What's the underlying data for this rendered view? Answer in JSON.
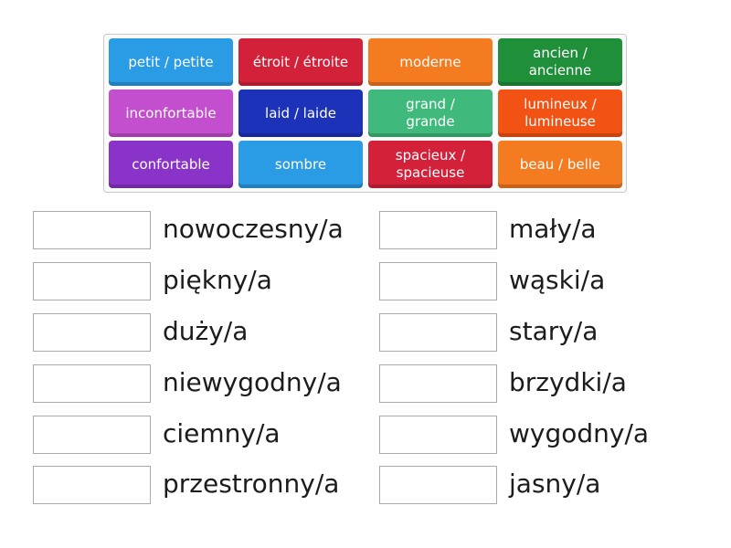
{
  "tiles": [
    {
      "label": "petit / petite",
      "color": "#2a9be5"
    },
    {
      "label": "étroit / étroite",
      "color": "#d4213a"
    },
    {
      "label": "moderne",
      "color": "#f47b20"
    },
    {
      "label": "ancien /\nancienne",
      "color": "#1f8f3a"
    },
    {
      "label": "inconfortable",
      "color": "#c34fcf"
    },
    {
      "label": "laid / laide",
      "color": "#1c32b8"
    },
    {
      "label": "grand /\ngrande",
      "color": "#3fba7c"
    },
    {
      "label": "lumineux /\nlumineuse",
      "color": "#f25314"
    },
    {
      "label": "confortable",
      "color": "#8a33c9"
    },
    {
      "label": "sombre",
      "color": "#2a9be5"
    },
    {
      "label": "spacieux /\nspacieuse",
      "color": "#d4213a"
    },
    {
      "label": "beau / belle",
      "color": "#f47b20"
    }
  ],
  "left_column": [
    {
      "label": "nowoczesny/a"
    },
    {
      "label": "piękny/a"
    },
    {
      "label": "duży/a"
    },
    {
      "label": "niewygodny/a"
    },
    {
      "label": "ciemny/a"
    },
    {
      "label": "przestronny/a"
    }
  ],
  "right_column": [
    {
      "label": "mały/a"
    },
    {
      "label": "wąski/a"
    },
    {
      "label": "stary/a"
    },
    {
      "label": "brzydki/a"
    },
    {
      "label": "wygodny/a"
    },
    {
      "label": "jasny/a"
    }
  ]
}
